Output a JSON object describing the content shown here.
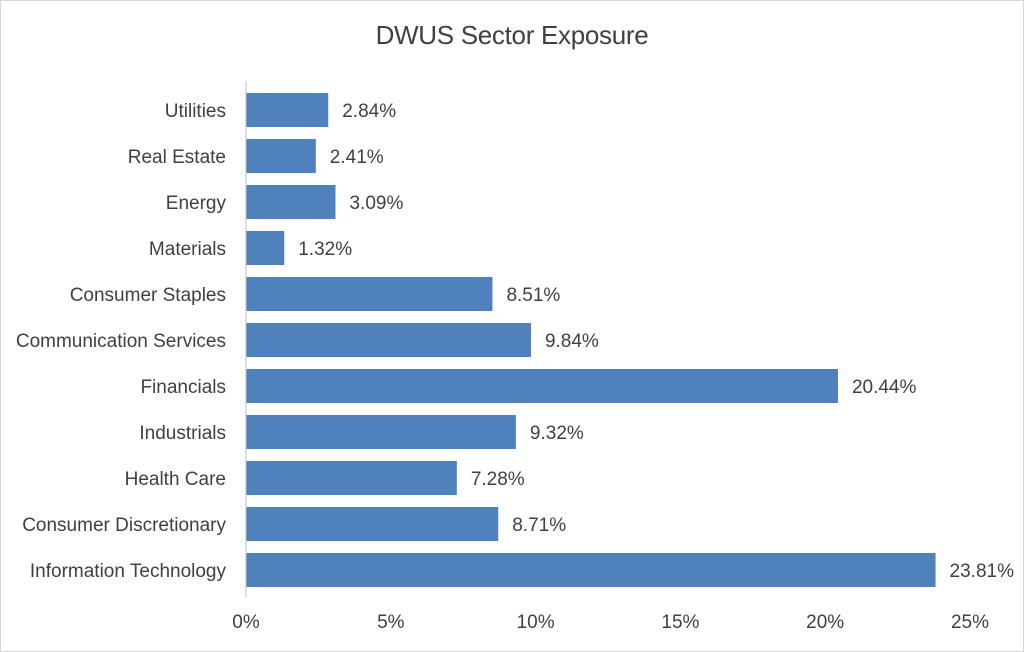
{
  "chart_data": {
    "type": "bar",
    "orientation": "horizontal",
    "title": "DWUS Sector Exposure",
    "xlabel": "",
    "ylabel": "",
    "xlim": [
      0,
      25
    ],
    "grid": false,
    "categories": [
      "Utilities",
      "Real Estate",
      "Energy",
      "Materials",
      "Consumer Staples",
      "Communication Services",
      "Financials",
      "Industrials",
      "Health Care",
      "Consumer Discretionary",
      "Information Technology"
    ],
    "values": [
      2.84,
      2.41,
      3.09,
      1.32,
      8.51,
      9.84,
      20.44,
      9.32,
      7.28,
      8.71,
      23.81
    ],
    "value_labels": [
      "2.84%",
      "2.41%",
      "3.09%",
      "1.32%",
      "8.51%",
      "9.84%",
      "20.44%",
      "9.32%",
      "7.28%",
      "8.71%",
      "23.81%"
    ],
    "ticks": [
      0,
      5,
      10,
      15,
      20,
      25
    ],
    "tick_labels": [
      "0%",
      "5%",
      "10%",
      "15%",
      "20%",
      "25%"
    ],
    "colors": {
      "bar": "#4f81bd",
      "text": "#404040",
      "axis": "#bfbfbf"
    }
  }
}
